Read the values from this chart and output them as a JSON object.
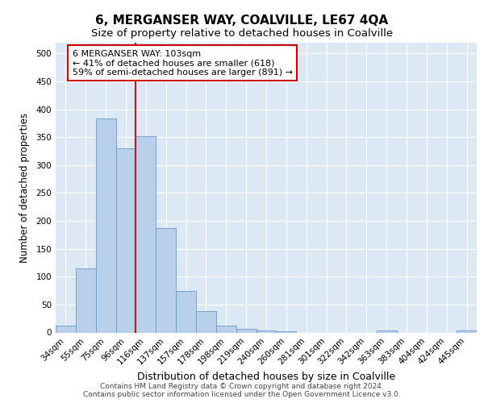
{
  "title": "6, MERGANSER WAY, COALVILLE, LE67 4QA",
  "subtitle": "Size of property relative to detached houses in Coalville",
  "xlabel": "Distribution of detached houses by size in Coalville",
  "ylabel": "Number of detached properties",
  "footer_line1": "Contains HM Land Registry data © Crown copyright and database right 2024.",
  "footer_line2": "Contains public sector information licensed under the Open Government Licence v3.0.",
  "categories": [
    "34sqm",
    "55sqm",
    "75sqm",
    "96sqm",
    "116sqm",
    "137sqm",
    "157sqm",
    "178sqm",
    "198sqm",
    "219sqm",
    "240sqm",
    "260sqm",
    "281sqm",
    "301sqm",
    "322sqm",
    "342sqm",
    "363sqm",
    "383sqm",
    "404sqm",
    "424sqm",
    "445sqm"
  ],
  "values": [
    12,
    115,
    383,
    330,
    352,
    187,
    75,
    38,
    12,
    7,
    3,
    2,
    0,
    0,
    0,
    0,
    4,
    0,
    0,
    0,
    4
  ],
  "bar_color": "#b8d0ea",
  "bar_edge_color": "#6699cc",
  "vline_color": "#cc0000",
  "vline_x_index": 3.5,
  "annotation_line1": "6 MERGANSER WAY: 103sqm",
  "annotation_line2": "← 41% of detached houses are smaller (618)",
  "annotation_line3": "59% of semi-detached houses are larger (891) →",
  "ylim": [
    0,
    520
  ],
  "yticks": [
    0,
    50,
    100,
    150,
    200,
    250,
    300,
    350,
    400,
    450,
    500
  ],
  "background_color": "#dde8f5",
  "title_fontsize": 11,
  "subtitle_fontsize": 9.5,
  "xlabel_fontsize": 9,
  "ylabel_fontsize": 8.5,
  "tick_fontsize": 7.5,
  "footer_fontsize": 6.5
}
